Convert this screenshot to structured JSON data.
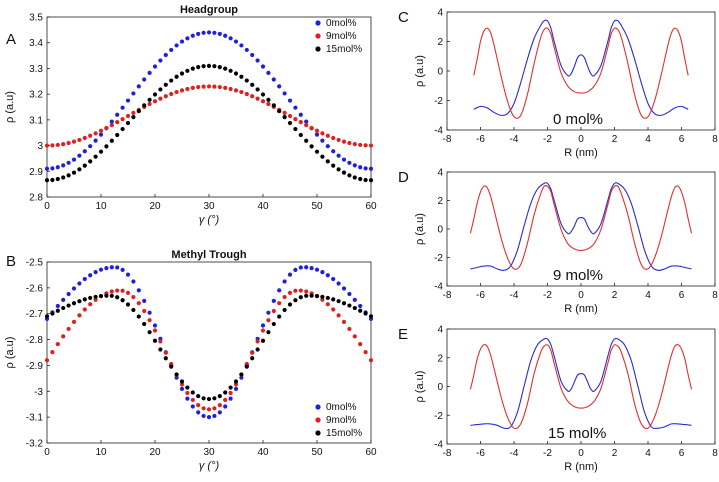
{
  "figure": {
    "panels": [
      {
        "id": "A",
        "letter": "A",
        "title": "Headgroup",
        "xlabel": "γ (°)",
        "ylabel": "ρ (a.u)"
      },
      {
        "id": "B",
        "letter": "B",
        "title": "Methyl Trough",
        "xlabel": "γ (°)",
        "ylabel": "ρ (a.u)"
      },
      {
        "id": "C",
        "letter": "C",
        "annotation": "0 mol%",
        "xlabel": "R (nm)",
        "ylabel": "ρ (a.u)"
      },
      {
        "id": "D",
        "letter": "D",
        "annotation": "9 mol%",
        "xlabel": "R (nm)",
        "ylabel": "ρ (a.u)"
      },
      {
        "id": "E",
        "letter": "E",
        "annotation": "15 mol%",
        "xlabel": "R (nm)",
        "ylabel": "ρ (a.u)"
      }
    ]
  },
  "chart_data": [
    {
      "id": "A",
      "type": "scatter",
      "title": "Headgroup",
      "xlabel": "γ (°)",
      "ylabel": "ρ (a.u)",
      "xlim": [
        0,
        60
      ],
      "ylim": [
        2.8,
        3.5
      ],
      "xticks": [
        0,
        10,
        20,
        30,
        40,
        50,
        60
      ],
      "yticks": [
        2.8,
        2.9,
        3,
        3.1,
        3.2,
        3.3,
        3.4,
        3.5
      ],
      "legend_position": "top-right",
      "x_step": 1,
      "series": [
        {
          "name": "0mol%",
          "color": "#1f1fe0",
          "form": "cos60",
          "min": 2.91,
          "max": 3.44
        },
        {
          "name": "9mol%",
          "color": "#e01f1f",
          "form": "cos60",
          "min": 3.0,
          "max": 3.23
        },
        {
          "name": "15mol%",
          "color": "#000000",
          "form": "cos60",
          "min": 2.865,
          "max": 3.31
        }
      ]
    },
    {
      "id": "B",
      "type": "scatter",
      "title": "Methyl Trough",
      "xlabel": "γ (°)",
      "ylabel": "ρ (a.u)",
      "xlim": [
        0,
        60
      ],
      "ylim": [
        -3.2,
        -2.5
      ],
      "xticks": [
        0,
        10,
        20,
        30,
        40,
        50,
        60
      ],
      "yticks": [
        -3.2,
        -3.1,
        -3,
        -2.9,
        -2.8,
        -2.7,
        -2.6,
        -2.5
      ],
      "legend_position": "bottom-right",
      "x_step": 1,
      "series": [
        {
          "name": "0mol%",
          "color": "#1f1fe0",
          "form": "trough",
          "at0": -2.72,
          "peak": -2.52,
          "peak_x": 12.5,
          "at30": -3.1
        },
        {
          "name": "9mol%",
          "color": "#e01f1f",
          "form": "trough",
          "at0": -2.88,
          "peak": -2.61,
          "peak_x": 13.5,
          "at30": -3.07
        },
        {
          "name": "15mol%",
          "color": "#000000",
          "form": "trough",
          "at0": -2.71,
          "peak": -2.63,
          "peak_x": 11.5,
          "at30": -3.03
        }
      ]
    },
    {
      "id": "C",
      "type": "line",
      "xlabel": "R (nm)",
      "ylabel": "ρ (a.u)",
      "xlim": [
        -8,
        8
      ],
      "ylim": [
        -4,
        4
      ],
      "xticks": [
        -8,
        -6,
        -4,
        -2,
        0,
        2,
        4,
        6,
        8
      ],
      "yticks": [
        -4,
        -2,
        0,
        2,
        4
      ],
      "annotation": "0 mol%",
      "series": [
        {
          "name": "blue",
          "color": "#2b2bd6",
          "x": [
            -6.4,
            -6,
            -5.6,
            -5.2,
            -4.8,
            -4.4,
            -4,
            -3.6,
            -3.2,
            -2.8,
            -2.4,
            -2.2,
            -2,
            -1.8,
            -1.6,
            -1.2,
            -0.8,
            -0.6,
            -0.4,
            -0.2,
            0,
            0.2,
            0.4,
            0.6,
            0.8,
            1.2,
            1.6,
            1.8,
            2,
            2.2,
            2.4,
            2.8,
            3.2,
            3.6,
            4,
            4.4,
            4.8,
            5.2,
            5.6,
            6,
            6.4
          ],
          "y": [
            -2.6,
            -2.4,
            -2.5,
            -2.8,
            -3.0,
            -2.9,
            -2.2,
            -0.8,
            0.8,
            2.2,
            3.1,
            3.4,
            3.4,
            2.9,
            2.0,
            0.4,
            -0.3,
            -0.2,
            0.3,
            0.9,
            1.1,
            0.9,
            0.3,
            -0.2,
            -0.3,
            0.4,
            2.0,
            2.9,
            3.4,
            3.4,
            3.1,
            2.2,
            0.8,
            -0.8,
            -2.2,
            -2.9,
            -3.0,
            -2.8,
            -2.5,
            -2.4,
            -2.6
          ]
        },
        {
          "name": "red",
          "color": "#e03030",
          "x": [
            -6.4,
            -6.2,
            -6,
            -5.8,
            -5.6,
            -5.4,
            -5.2,
            -4.8,
            -4.4,
            -4,
            -3.6,
            -3.2,
            -2.8,
            -2.4,
            -2.2,
            -2,
            -1.8,
            -1.6,
            -1.2,
            -0.8,
            -0.4,
            0,
            0.4,
            0.8,
            1.2,
            1.6,
            1.8,
            2,
            2.2,
            2.4,
            2.8,
            3.2,
            3.6,
            4,
            4.4,
            4.8,
            5.2,
            5.4,
            5.6,
            5.8,
            6,
            6.2,
            6.4
          ],
          "y": [
            -0.3,
            0.8,
            2.0,
            2.7,
            2.9,
            2.6,
            1.8,
            -0.2,
            -2.0,
            -3.1,
            -3.0,
            -1.6,
            0.5,
            2.3,
            2.8,
            2.9,
            2.5,
            1.6,
            -0.1,
            -1.0,
            -1.4,
            -1.5,
            -1.4,
            -1.0,
            -0.1,
            1.6,
            2.5,
            2.9,
            2.8,
            2.3,
            0.5,
            -1.6,
            -3.0,
            -3.1,
            -2.0,
            -0.2,
            1.8,
            2.6,
            2.9,
            2.7,
            2.0,
            0.8,
            -0.3
          ]
        }
      ]
    },
    {
      "id": "D",
      "type": "line",
      "xlabel": "R (nm)",
      "ylabel": "ρ (a.u)",
      "xlim": [
        -8,
        8
      ],
      "ylim": [
        -4,
        4
      ],
      "xticks": [
        -8,
        -6,
        -4,
        -2,
        0,
        2,
        4,
        6,
        8
      ],
      "yticks": [
        -4,
        -2,
        0,
        2,
        4
      ],
      "annotation": "9 mol%",
      "series": [
        {
          "name": "blue",
          "color": "#2b2bd6",
          "x": [
            -6.6,
            -6.2,
            -5.8,
            -5.4,
            -5,
            -4.6,
            -4.2,
            -3.8,
            -3.4,
            -3,
            -2.6,
            -2.2,
            -2,
            -1.8,
            -1.6,
            -1.2,
            -0.8,
            -0.6,
            -0.4,
            -0.2,
            0,
            0.2,
            0.4,
            0.6,
            0.8,
            1.2,
            1.6,
            1.8,
            2,
            2.2,
            2.6,
            3,
            3.4,
            3.8,
            4.2,
            4.6,
            5,
            5.4,
            5.8,
            6.2,
            6.6
          ],
          "y": [
            -2.8,
            -2.7,
            -2.6,
            -2.6,
            -2.8,
            -2.9,
            -2.6,
            -1.5,
            0.2,
            1.8,
            2.8,
            3.2,
            3.2,
            2.8,
            2.0,
            0.4,
            -0.3,
            -0.2,
            0.2,
            0.7,
            0.8,
            0.7,
            0.2,
            -0.2,
            -0.3,
            0.4,
            2.0,
            2.8,
            3.2,
            3.2,
            2.8,
            1.8,
            0.2,
            -1.5,
            -2.6,
            -2.9,
            -2.8,
            -2.6,
            -2.6,
            -2.7,
            -2.8
          ]
        },
        {
          "name": "red",
          "color": "#e03030",
          "x": [
            -6.6,
            -6.4,
            -6.2,
            -6,
            -5.8,
            -5.6,
            -5.4,
            -5.2,
            -4.8,
            -4.4,
            -4,
            -3.6,
            -3.2,
            -2.8,
            -2.4,
            -2.2,
            -2,
            -1.8,
            -1.6,
            -1.2,
            -0.8,
            -0.4,
            0,
            0.4,
            0.8,
            1.2,
            1.6,
            1.8,
            2,
            2.2,
            2.4,
            2.8,
            3.2,
            3.6,
            4,
            4.4,
            4.8,
            5.2,
            5.4,
            5.6,
            5.8,
            6,
            6.2,
            6.4,
            6.6
          ],
          "y": [
            -0.3,
            0.7,
            1.8,
            2.6,
            3.0,
            2.9,
            2.3,
            1.4,
            -0.5,
            -2.0,
            -2.8,
            -2.5,
            -1.0,
            1.0,
            2.5,
            3.0,
            3.0,
            2.6,
            1.7,
            0.0,
            -1.0,
            -1.4,
            -1.5,
            -1.4,
            -1.0,
            0.0,
            1.7,
            2.6,
            3.0,
            3.0,
            2.5,
            1.0,
            -1.0,
            -2.5,
            -2.8,
            -2.0,
            -0.5,
            1.4,
            2.3,
            2.9,
            3.0,
            2.6,
            1.8,
            0.7,
            -0.3
          ]
        }
      ]
    },
    {
      "id": "E",
      "type": "line",
      "xlabel": "R (nm)",
      "ylabel": "ρ (a.u)",
      "xlim": [
        -8,
        8
      ],
      "ylim": [
        -4,
        4
      ],
      "xticks": [
        -8,
        -6,
        -4,
        -2,
        0,
        2,
        4,
        6,
        8
      ],
      "yticks": [
        -4,
        -2,
        0,
        2,
        4
      ],
      "annotation": "15 mol%",
      "series": [
        {
          "name": "blue",
          "color": "#2b2bd6",
          "x": [
            -6.6,
            -6.2,
            -5.8,
            -5.4,
            -5,
            -4.6,
            -4.2,
            -3.8,
            -3.4,
            -3,
            -2.6,
            -2.2,
            -2,
            -1.8,
            -1.6,
            -1.2,
            -0.8,
            -0.6,
            -0.4,
            -0.2,
            0,
            0.2,
            0.4,
            0.6,
            0.8,
            1.2,
            1.6,
            1.8,
            2,
            2.2,
            2.6,
            3,
            3.4,
            3.8,
            4.2,
            4.6,
            5,
            5.4,
            5.8,
            6.2,
            6.6
          ],
          "y": [
            -2.7,
            -2.65,
            -2.6,
            -2.6,
            -2.7,
            -2.9,
            -2.8,
            -1.8,
            0.0,
            1.8,
            2.9,
            3.3,
            3.3,
            2.9,
            2.1,
            0.4,
            -0.3,
            -0.2,
            0.3,
            0.8,
            0.9,
            0.8,
            0.3,
            -0.2,
            -0.3,
            0.4,
            2.1,
            2.9,
            3.3,
            3.3,
            2.9,
            1.8,
            0.0,
            -1.8,
            -2.8,
            -2.9,
            -2.8,
            -2.6,
            -2.6,
            -2.65,
            -2.7
          ]
        },
        {
          "name": "red",
          "color": "#e03030",
          "x": [
            -6.6,
            -6.4,
            -6.2,
            -6,
            -5.8,
            -5.6,
            -5.4,
            -5.2,
            -4.8,
            -4.4,
            -4,
            -3.6,
            -3.2,
            -2.8,
            -2.4,
            -2.2,
            -2,
            -1.8,
            -1.6,
            -1.2,
            -0.8,
            -0.4,
            0,
            0.4,
            0.8,
            1.2,
            1.6,
            1.8,
            2,
            2.2,
            2.4,
            2.8,
            3.2,
            3.6,
            4,
            4.4,
            4.8,
            5.2,
            5.4,
            5.6,
            5.8,
            6,
            6.2,
            6.4,
            6.6
          ],
          "y": [
            -0.2,
            0.8,
            1.9,
            2.6,
            2.9,
            2.8,
            2.2,
            1.3,
            -0.6,
            -2.1,
            -2.9,
            -2.6,
            -1.2,
            0.9,
            2.4,
            2.8,
            2.9,
            2.5,
            1.6,
            -0.1,
            -1.0,
            -1.4,
            -1.5,
            -1.4,
            -1.0,
            -0.1,
            1.6,
            2.5,
            2.9,
            2.8,
            2.4,
            0.9,
            -1.2,
            -2.6,
            -2.9,
            -2.1,
            -0.6,
            1.3,
            2.2,
            2.8,
            2.9,
            2.6,
            1.9,
            0.8,
            -0.2
          ]
        }
      ]
    }
  ]
}
